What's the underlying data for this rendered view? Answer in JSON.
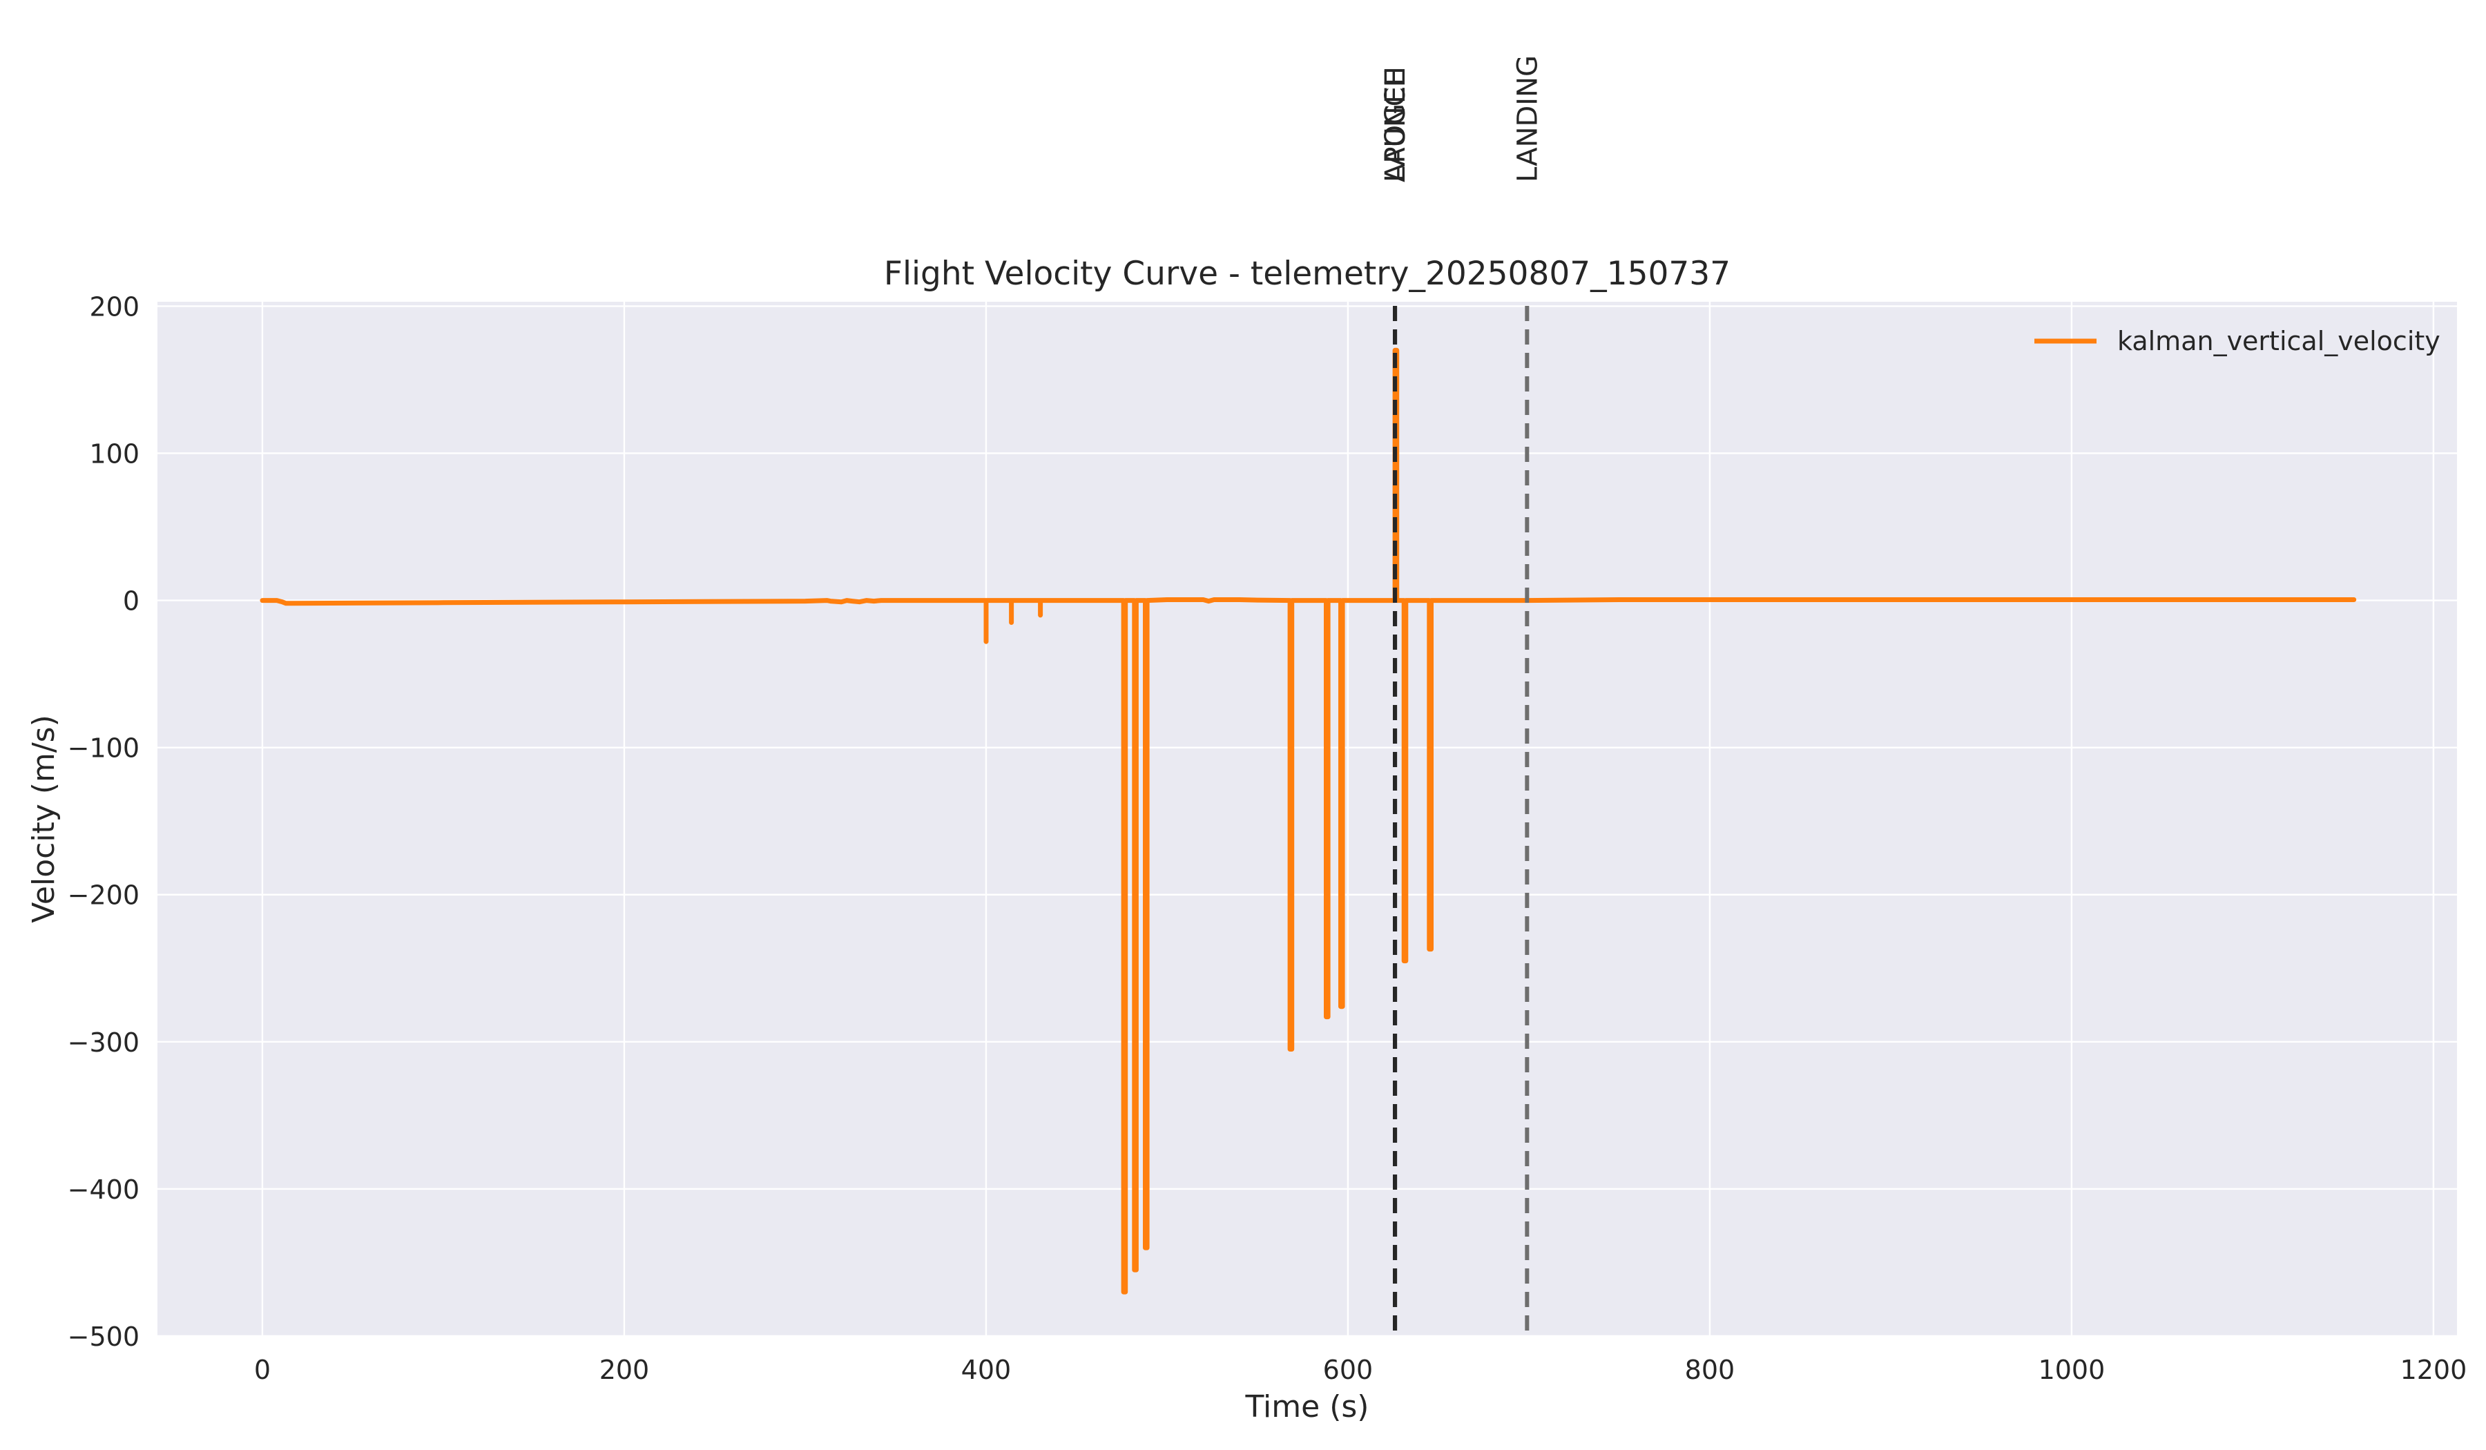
{
  "chart_data": {
    "type": "line",
    "title": "Flight Velocity Curve - telemetry_20250807_150737",
    "xlabel": "Time (s)",
    "ylabel": "Velocity (m/s)",
    "xlim": [
      -58,
      1213
    ],
    "ylim": [
      -500,
      203
    ],
    "xticks": [
      0,
      200,
      400,
      600,
      800,
      1000,
      1200
    ],
    "yticks": [
      200,
      100,
      0,
      -100,
      -200,
      -300,
      -400,
      -500
    ],
    "xtick_labels": [
      "0",
      "200",
      "400",
      "600",
      "800",
      "1000",
      "1200"
    ],
    "ytick_labels": [
      "200",
      "100",
      "0",
      "−100",
      "−200",
      "−300",
      "−400",
      "−500"
    ],
    "grid": true,
    "legend_position": "top-right",
    "colors": {
      "series": "#ff7f0e",
      "plot_background": "#eaeaf2",
      "grid": "#ffffff",
      "launch_apogee_line": "#262626",
      "landing_line": "#6e6e6e"
    },
    "events": [
      {
        "label": "LAUNCH",
        "x": 626
      },
      {
        "label": "APOGEE",
        "x": 626
      },
      {
        "label": "LANDING",
        "x": 699
      }
    ],
    "series": [
      {
        "name": "kalman_vertical_velocity",
        "x": [
          0,
          4,
          8,
          11,
          13,
          16,
          100,
          200,
          300,
          312,
          314,
          320,
          323,
          326,
          330,
          334,
          338,
          342,
          400,
          400,
          400,
          401,
          414,
          414,
          414,
          415,
          430,
          430,
          430,
          431,
          476,
          476,
          477,
          477,
          482,
          482,
          483,
          483,
          488,
          488,
          489,
          489,
          500,
          520,
          523,
          526,
          540,
          550,
          568,
          568,
          569,
          569,
          588,
          588,
          589,
          589,
          596,
          596,
          597,
          597,
          620,
          626,
          626,
          627,
          627,
          631,
          631,
          632,
          632,
          645,
          645,
          646,
          646,
          660,
          699,
          750,
          800,
          900,
          1000,
          1100,
          1156
        ],
        "y": [
          0,
          0,
          0,
          -1,
          -2,
          -2,
          -1.5,
          -1,
          -0.5,
          0,
          -0.5,
          -1,
          0,
          -0.5,
          -1,
          0,
          -0.5,
          0,
          0,
          -28,
          0,
          0,
          0,
          -15,
          0,
          0,
          0,
          -10,
          0,
          0,
          0,
          -470,
          -470,
          0,
          0,
          -455,
          -455,
          0,
          0,
          -440,
          -440,
          0,
          0.5,
          0.5,
          -0.5,
          0.5,
          0.5,
          0.2,
          0,
          -305,
          -305,
          0,
          0,
          -283,
          -283,
          0,
          0,
          -276,
          -276,
          0,
          0,
          0,
          170,
          170,
          0,
          0,
          -245,
          -245,
          0,
          0,
          -237,
          -237,
          0,
          0,
          0,
          0.5,
          0.5,
          0.5,
          0.5,
          0.5,
          0.5
        ]
      }
    ]
  }
}
